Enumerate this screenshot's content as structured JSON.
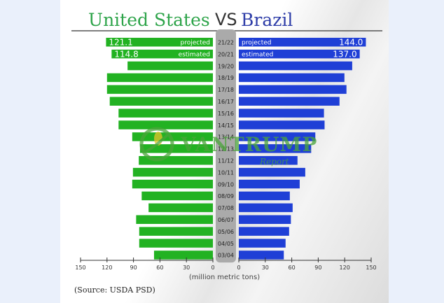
{
  "chart_data": {
    "type": "bar",
    "orientation": "horizontal-butterfly",
    "title_left": "United States",
    "title_mid": "VS",
    "title_right": "Brazil",
    "xlabel": "(million metric tons)",
    "source": "(Source: USDA PSD)",
    "categories": [
      "21/22",
      "20/21",
      "19/20",
      "18/19",
      "17/18",
      "16/17",
      "15/16",
      "14/15",
      "13/14",
      "12/13",
      "11/12",
      "10/11",
      "09/10",
      "08/09",
      "07/08",
      "06/07",
      "05/06",
      "04/05",
      "03/04"
    ],
    "series": [
      {
        "name": "United States",
        "color": "#22b222",
        "values": [
          121.1,
          114.8,
          96.7,
          120.0,
          120.0,
          116.9,
          106.9,
          106.9,
          91.4,
          82.6,
          84.0,
          90.6,
          91.4,
          80.7,
          72.9,
          87.0,
          83.5,
          83.5,
          66.7
        ]
      },
      {
        "name": "Brazil",
        "color": "#1f3fd6",
        "values": [
          144.0,
          137.0,
          128.5,
          119.7,
          122.0,
          114.1,
          96.5,
          97.2,
          86.7,
          82.0,
          66.5,
          75.3,
          69.0,
          57.8,
          61.0,
          59.0,
          57.0,
          53.0,
          51.0
        ]
      }
    ],
    "bar_labels": {
      "us": [
        {
          "value_text": "121.1",
          "note": "projected"
        },
        {
          "value_text": "114.8",
          "note": "estimated"
        }
      ],
      "brazil": [
        {
          "value_text": "144.0",
          "note": "projected"
        },
        {
          "value_text": "137.0",
          "note": "estimated"
        }
      ]
    },
    "xlim": [
      0,
      150
    ],
    "left_ticks": [
      "150",
      "120",
      "90",
      "60",
      "30",
      "0"
    ],
    "right_ticks": [
      "0",
      "30",
      "60",
      "90",
      "120",
      "150"
    ]
  },
  "watermark": {
    "brand": "VANTRUMP",
    "sub": "Report"
  }
}
